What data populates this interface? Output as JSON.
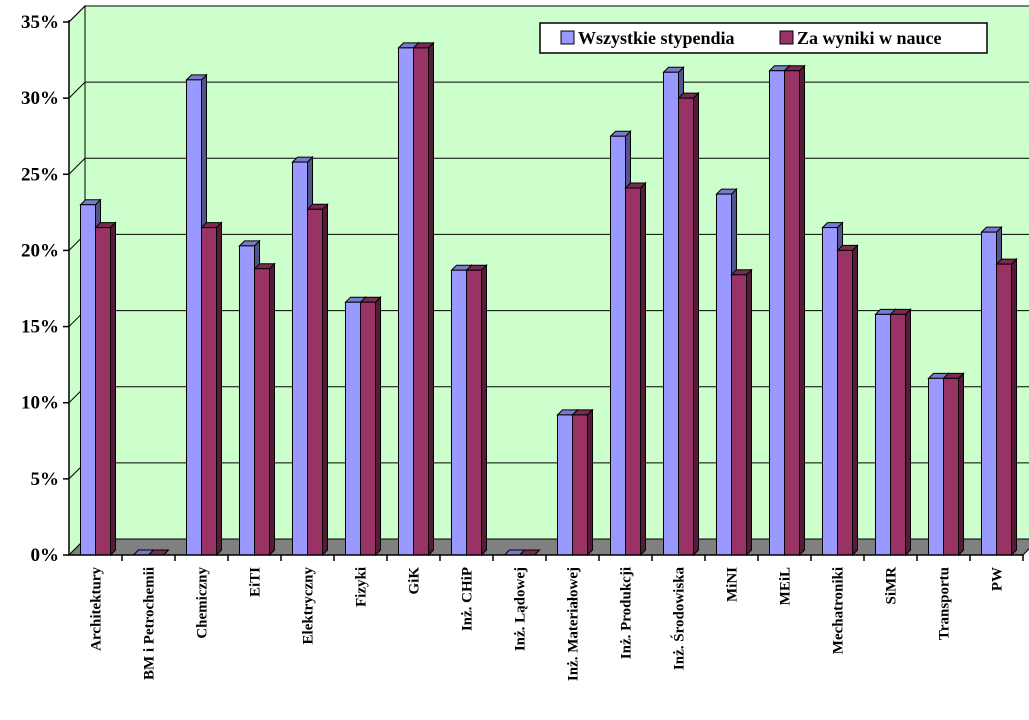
{
  "chart_data": {
    "type": "bar",
    "title": "",
    "xlabel": "",
    "ylabel": "",
    "ylim": [
      0,
      35
    ],
    "yticks": [
      "0%",
      "5%",
      "10%",
      "15%",
      "20%",
      "25%",
      "30%",
      "35%"
    ],
    "categories": [
      "Architektury",
      "BM i Petrochemii",
      "Chemiczny",
      "EiTI",
      "Elektryczny",
      "Fizyki",
      "GiK",
      "Inż. CHiP",
      "Inż. Lądowej",
      "Inż. Materiałowej",
      "Inż. Produkcji",
      "Inż. Środowiska",
      "MiNI",
      "MEiL",
      "Mechatroniki",
      "SiMR",
      "Transportu",
      "PW"
    ],
    "series": [
      {
        "name": "Wszystkie stypendia",
        "color": "#9999ff",
        "values": [
          23.0,
          0,
          31.2,
          20.3,
          25.8,
          16.6,
          33.3,
          18.7,
          0,
          9.2,
          27.5,
          31.7,
          23.7,
          31.8,
          21.5,
          15.8,
          11.6,
          21.2
        ]
      },
      {
        "name": "Za wyniki w nauce",
        "color": "#993366",
        "values": [
          21.5,
          0,
          21.5,
          18.8,
          22.7,
          16.6,
          33.3,
          18.7,
          0,
          9.2,
          24.1,
          30.0,
          18.4,
          31.8,
          20.0,
          15.8,
          11.6,
          19.1
        ]
      }
    ],
    "grid": true,
    "legend_position": "top-right",
    "plot_background": "#ccffcc",
    "floor_color": "#808080"
  }
}
